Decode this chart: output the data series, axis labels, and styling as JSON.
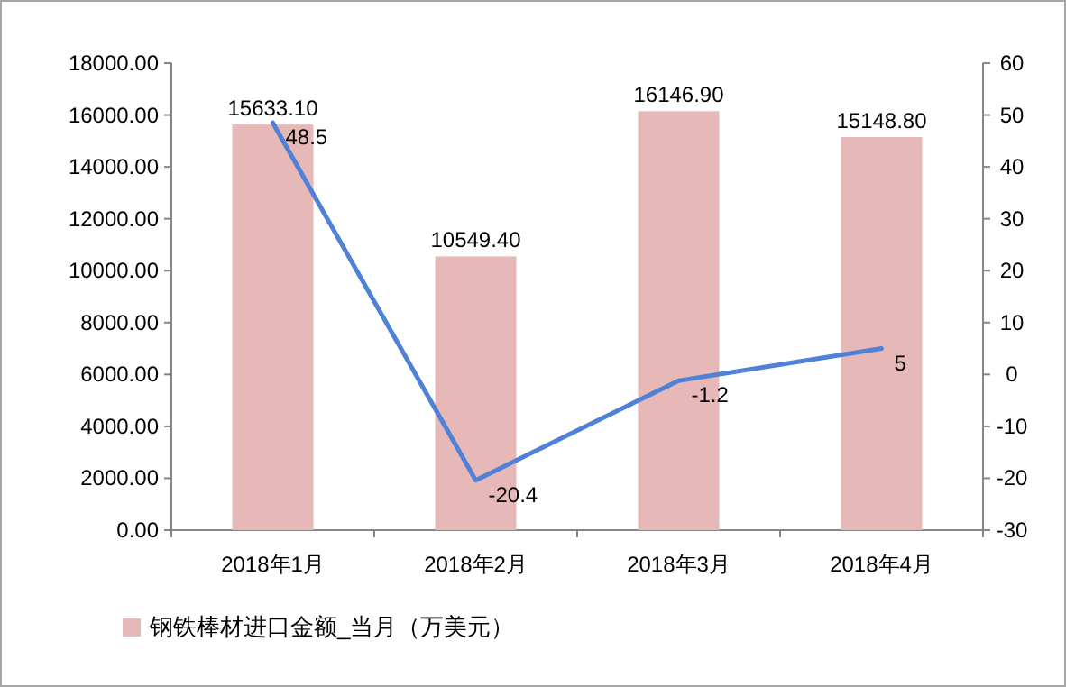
{
  "chart_data": {
    "type": "bar",
    "categories": [
      "2018年1月",
      "2018年2月",
      "2018年3月",
      "2018年4月"
    ],
    "series": [
      {
        "name": "钢铁棒材进口金额_当月（万美元）",
        "color": "#e6b9b8",
        "values": [
          15633.1,
          10549.4,
          16146.9,
          15148.8
        ],
        "value_labels": [
          "15633.10",
          "10549.40",
          "16146.90",
          "15148.80"
        ]
      },
      {
        "type": "line",
        "axis": "y2",
        "color": "#4f81d6",
        "values": [
          48.5,
          -20.4,
          -1.2,
          5
        ],
        "value_labels": [
          "48.5",
          "-20.4",
          "-1.2",
          "5"
        ]
      }
    ],
    "ylim": [
      0,
      18000
    ],
    "yticks": [
      {
        "value": 0,
        "label": "0.00"
      },
      {
        "value": 2000,
        "label": "2000.00"
      },
      {
        "value": 4000,
        "label": "4000.00"
      },
      {
        "value": 6000,
        "label": "6000.00"
      },
      {
        "value": 8000,
        "label": "8000.00"
      },
      {
        "value": 10000,
        "label": "10000.00"
      },
      {
        "value": 12000,
        "label": "12000.00"
      },
      {
        "value": 14000,
        "label": "14000.00"
      },
      {
        "value": 16000,
        "label": "16000.00"
      },
      {
        "value": 18000,
        "label": "18000.00"
      }
    ],
    "y2lim": [
      -30,
      60
    ],
    "y2ticks": [
      -30,
      -20,
      -10,
      0,
      10,
      20,
      30,
      40,
      50,
      60
    ],
    "legend": "bottom",
    "grid": false,
    "marker": "none"
  }
}
